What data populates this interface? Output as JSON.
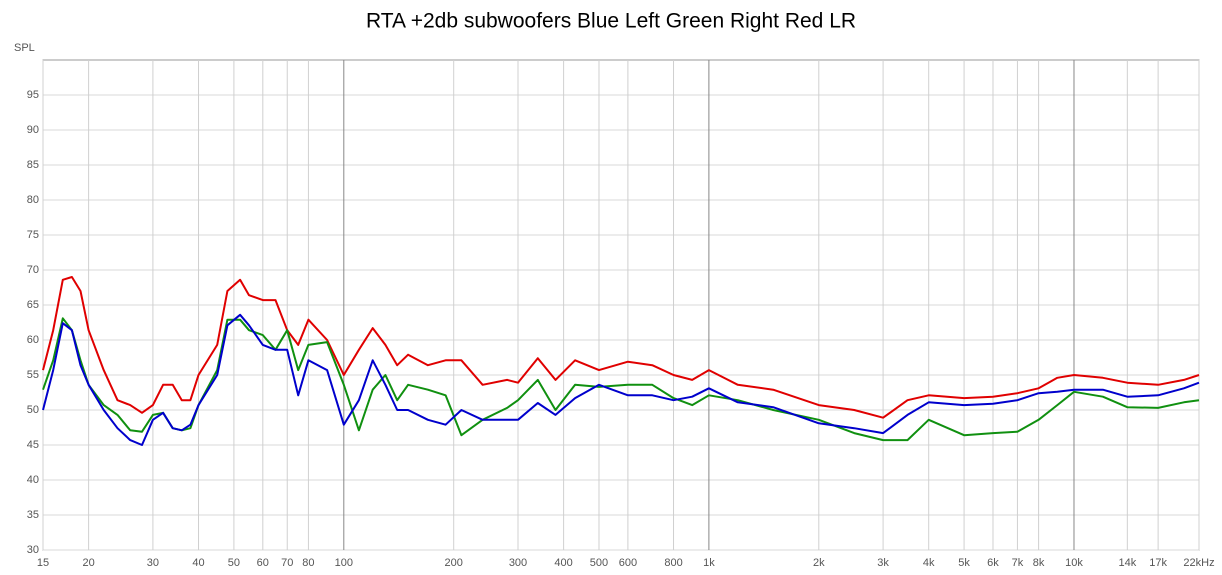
{
  "chart_data": {
    "type": "line",
    "title": "RTA +2db subwoofers Blue Left Green Right Red LR",
    "ylabel": "SPL",
    "log_x": true,
    "grid": true,
    "xlim": [
      15,
      22000
    ],
    "ylim": [
      30,
      100
    ],
    "yticks": [
      30,
      35,
      40,
      45,
      50,
      55,
      60,
      65,
      70,
      75,
      80,
      85,
      90,
      95
    ],
    "xticks": [
      15,
      20,
      30,
      40,
      50,
      60,
      70,
      80,
      100,
      200,
      300,
      400,
      500,
      600,
      800,
      {
        "value": 1000,
        "label": "1k"
      },
      {
        "value": 2000,
        "label": "2k"
      },
      {
        "value": 3000,
        "label": "3k"
      },
      {
        "value": 4000,
        "label": "4k"
      },
      {
        "value": 5000,
        "label": "5k"
      },
      {
        "value": 6000,
        "label": "6k"
      },
      {
        "value": 7000,
        "label": "7k"
      },
      {
        "value": 8000,
        "label": "8k"
      },
      {
        "value": 10000,
        "label": "10k"
      },
      {
        "value": 14000,
        "label": "14k"
      },
      {
        "value": 17000,
        "label": "17k"
      },
      {
        "value": 22000,
        "label": "22kHz"
      }
    ],
    "x": [
      15,
      16,
      17,
      18,
      19,
      20,
      22,
      24,
      26,
      28,
      30,
      32,
      34,
      36,
      38,
      40,
      45,
      48,
      52,
      55,
      60,
      65,
      70,
      75,
      80,
      90,
      100,
      110,
      120,
      130,
      140,
      150,
      170,
      190,
      210,
      240,
      280,
      300,
      340,
      380,
      430,
      500,
      600,
      700,
      800,
      900,
      1000,
      1200,
      1500,
      2000,
      2500,
      3000,
      3500,
      4000,
      5000,
      6000,
      7000,
      8000,
      9000,
      10000,
      12000,
      14000,
      17000,
      20000,
      22000
    ],
    "series": [
      {
        "color": "#e00000",
        "values": [
          55.7,
          61.4,
          68.6,
          69,
          67,
          61.4,
          55.7,
          51.4,
          50.7,
          49.6,
          50.7,
          53.6,
          53.6,
          51.4,
          51.4,
          55,
          59.3,
          67,
          68.6,
          66.4,
          65.7,
          65.7,
          61.4,
          59.3,
          62.9,
          60,
          55,
          58.6,
          61.7,
          59.3,
          56.4,
          57.9,
          56.4,
          57.1,
          57.1,
          53.6,
          54.3,
          53.9,
          57.4,
          54.3,
          57.1,
          55.7,
          56.9,
          56.4,
          55,
          54.3,
          55.7,
          53.6,
          52.9,
          50.7,
          50,
          48.9,
          51.4,
          52.1,
          51.7,
          51.9,
          52.4,
          53.1,
          54.6,
          55,
          54.6,
          53.9,
          53.6,
          54.3,
          55
        ]
      },
      {
        "color": "#109010",
        "values": [
          52.9,
          57.1,
          63.1,
          61.4,
          57.1,
          53.6,
          50.7,
          49.3,
          47.1,
          46.9,
          49.3,
          49.6,
          47.4,
          47.1,
          47.4,
          50.7,
          55.7,
          62.9,
          62.9,
          61.4,
          60.7,
          58.6,
          61.4,
          55.7,
          59.3,
          59.7,
          53.6,
          47.1,
          52.9,
          55,
          51.4,
          53.6,
          52.9,
          52.1,
          46.4,
          48.6,
          50.3,
          51.4,
          54.3,
          50,
          53.6,
          53.3,
          53.6,
          53.6,
          51.7,
          50.7,
          52.1,
          51.4,
          50,
          48.6,
          46.7,
          45.7,
          45.7,
          48.6,
          46.4,
          46.7,
          46.9,
          48.6,
          50.7,
          52.6,
          51.9,
          50.4,
          50.3,
          51.1,
          51.4
        ]
      },
      {
        "color": "#0000cc",
        "values": [
          50,
          55.7,
          62.4,
          61.4,
          56.4,
          53.6,
          50,
          47.4,
          45.7,
          45,
          48.6,
          49.6,
          47.4,
          47.1,
          47.9,
          50.7,
          55,
          62.1,
          63.6,
          62.1,
          59.3,
          58.6,
          58.6,
          52.1,
          57.1,
          55.7,
          47.9,
          51.4,
          57.1,
          53.6,
          50,
          50,
          48.6,
          47.9,
          50,
          48.6,
          48.6,
          48.6,
          51,
          49.3,
          51.7,
          53.6,
          52.1,
          52.1,
          51.4,
          51.9,
          53.1,
          51.1,
          50.4,
          48.1,
          47.4,
          46.7,
          49.3,
          51.1,
          50.7,
          50.9,
          51.4,
          52.4,
          52.6,
          52.9,
          52.9,
          51.9,
          52.1,
          53.1,
          53.9
        ]
      }
    ]
  }
}
